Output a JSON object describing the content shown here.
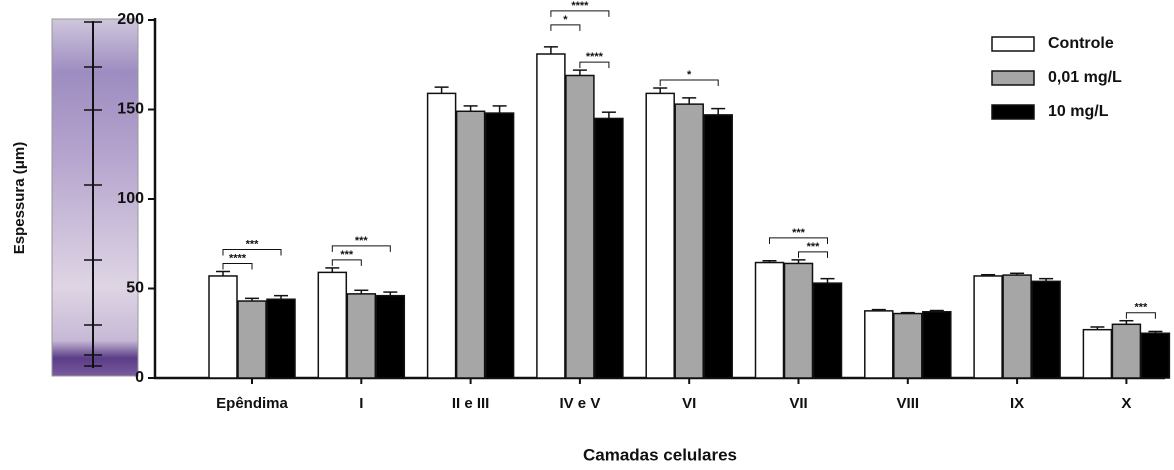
{
  "chart_data": {
    "type": "bar",
    "xlabel": "Camadas celulares",
    "ylabel": "Espessura (μm)",
    "categories": [
      "Epêndima",
      "I",
      "II e III",
      "IV e V",
      "VI",
      "VII",
      "VIII",
      "IX",
      "X"
    ],
    "series": [
      {
        "name": "Controle",
        "color": "#ffffff",
        "values": [
          57,
          59,
          159,
          181,
          159,
          64.5,
          37.5,
          57,
          27
        ],
        "errors": [
          2.5,
          2.5,
          3.5,
          4,
          3,
          1,
          0.7,
          0.7,
          1.5
        ]
      },
      {
        "name": "0,01 mg/L",
        "color": "#a6a6a6",
        "values": [
          43,
          47,
          149,
          169,
          153,
          64,
          36,
          57.5,
          30
        ],
        "errors": [
          1.5,
          2,
          3,
          3,
          3.5,
          2,
          0.5,
          1,
          2
        ]
      },
      {
        "name": "10 mg/L",
        "color": "#000000",
        "values": [
          44,
          46,
          148,
          145,
          147,
          53,
          37,
          54,
          25
        ],
        "errors": [
          2,
          2,
          4,
          3.5,
          3.5,
          2.5,
          0.7,
          1.5,
          1
        ]
      }
    ],
    "ylim": [
      0,
      200
    ],
    "yticks": [
      0,
      50,
      100,
      150,
      200
    ],
    "legend": "top-right",
    "significance": [
      {
        "category": 0,
        "from": 0,
        "to": 1,
        "label": "****"
      },
      {
        "category": 0,
        "from": 0,
        "to": 2,
        "label": "***"
      },
      {
        "category": 1,
        "from": 0,
        "to": 1,
        "label": "***"
      },
      {
        "category": 1,
        "from": 0,
        "to": 2,
        "label": "***"
      },
      {
        "category": 3,
        "from": 1,
        "to": 2,
        "label": "****"
      },
      {
        "category": 3,
        "from": 0,
        "to": 1,
        "label": "*"
      },
      {
        "category": 3,
        "from": 0,
        "to": 2,
        "label": "****"
      },
      {
        "category": 4,
        "from": 0,
        "to": 2,
        "label": "*"
      },
      {
        "category": 5,
        "from": 1,
        "to": 2,
        "label": "***"
      },
      {
        "category": 5,
        "from": 0,
        "to": 2,
        "label": "***"
      },
      {
        "category": 8,
        "from": 1,
        "to": 2,
        "label": "***"
      }
    ]
  }
}
